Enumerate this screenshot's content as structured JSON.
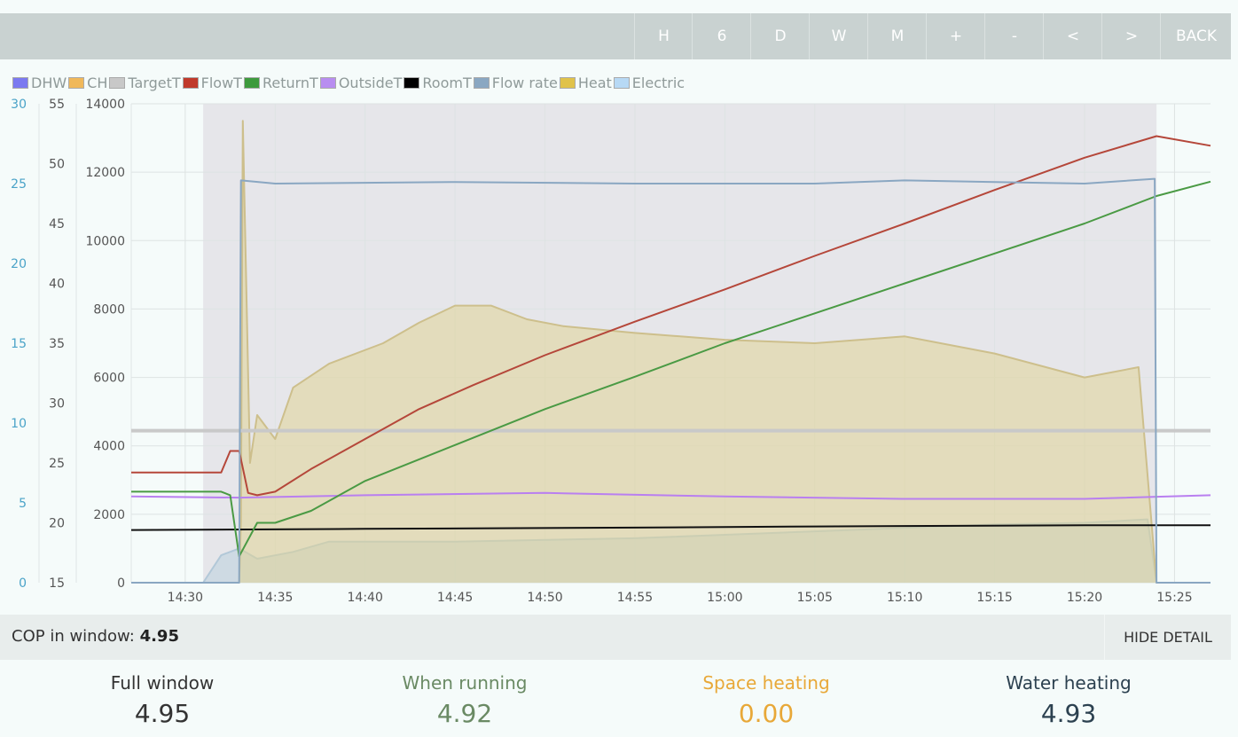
{
  "toolbar": {
    "buttons": [
      "H",
      "6",
      "D",
      "W",
      "M",
      "+",
      "-",
      "<",
      ">",
      "BACK"
    ]
  },
  "legend": [
    {
      "label": "DHW",
      "color": "#7b79f0"
    },
    {
      "label": "CH",
      "color": "#f0b85a"
    },
    {
      "label": "TargetT",
      "color": "#c8c8c8"
    },
    {
      "label": "FlowT",
      "color": "#c0392b"
    },
    {
      "label": "ReturnT",
      "color": "#3d9a3d"
    },
    {
      "label": "OutsideT",
      "color": "#b88df0"
    },
    {
      "label": "RoomT",
      "color": "#000000"
    },
    {
      "label": "Flow rate",
      "color": "#8aa7c2"
    },
    {
      "label": "Heat",
      "color": "#e0c24a"
    },
    {
      "label": "Electric",
      "color": "#b7d9f5"
    }
  ],
  "chart_data": {
    "type": "line",
    "x_ticks": [
      "14:30",
      "14:35",
      "14:40",
      "14:45",
      "14:50",
      "14:55",
      "15:00",
      "15:05",
      "15:10",
      "15:15",
      "15:20",
      "15:25"
    ],
    "x_range": [
      "14:27",
      "15:27"
    ],
    "y_axis_flow_rate": {
      "ticks": [
        0,
        5,
        10,
        15,
        20,
        25,
        30
      ],
      "range": [
        0,
        30
      ],
      "color": "#4aa3c8"
    },
    "y_axis_temperature": {
      "ticks": [
        15,
        20,
        25,
        30,
        35,
        40,
        45,
        50,
        55
      ],
      "range": [
        15,
        55
      ]
    },
    "y_axis_power": {
      "ticks": [
        0,
        2000,
        4000,
        6000,
        8000,
        10000,
        12000,
        14000
      ],
      "range": [
        0,
        14000
      ]
    },
    "running_band": [
      "14:31",
      "15:24"
    ],
    "series": [
      {
        "name": "FlowT",
        "axis": "temperature",
        "color": "#b5473a",
        "points": [
          [
            "14:27",
            24.2
          ],
          [
            "14:32",
            24.2
          ],
          [
            "14:32.5",
            26.0
          ],
          [
            "14:33",
            26.0
          ],
          [
            "14:33.5",
            22.5
          ],
          [
            "14:34",
            22.3
          ],
          [
            "14:35",
            22.6
          ],
          [
            "14:37",
            24.5
          ],
          [
            "14:40",
            27.0
          ],
          [
            "14:43",
            29.5
          ],
          [
            "14:46",
            31.5
          ],
          [
            "14:50",
            34.0
          ],
          [
            "14:55",
            36.8
          ],
          [
            "15:00",
            39.5
          ],
          [
            "15:05",
            42.3
          ],
          [
            "15:10",
            45.0
          ],
          [
            "15:15",
            47.8
          ],
          [
            "15:20",
            50.5
          ],
          [
            "15:24",
            52.3
          ],
          [
            "15:27",
            51.5
          ]
        ]
      },
      {
        "name": "ReturnT",
        "axis": "temperature",
        "color": "#4a9a44",
        "points": [
          [
            "14:27",
            22.6
          ],
          [
            "14:32",
            22.6
          ],
          [
            "14:32.5",
            22.3
          ],
          [
            "14:33",
            17.2
          ],
          [
            "14:34",
            20.0
          ],
          [
            "14:35",
            20.0
          ],
          [
            "14:37",
            21.0
          ],
          [
            "14:40",
            23.5
          ],
          [
            "14:45",
            26.5
          ],
          [
            "14:50",
            29.5
          ],
          [
            "14:55",
            32.2
          ],
          [
            "15:00",
            35.0
          ],
          [
            "15:05",
            37.5
          ],
          [
            "15:10",
            40.0
          ],
          [
            "15:15",
            42.5
          ],
          [
            "15:20",
            45.0
          ],
          [
            "15:24",
            47.3
          ],
          [
            "15:27",
            48.5
          ]
        ]
      },
      {
        "name": "TargetT",
        "axis": "temperature",
        "color": "#c9c9c9",
        "points": [
          [
            "14:27",
            27.7
          ],
          [
            "15:27",
            27.7
          ]
        ]
      },
      {
        "name": "OutsideT",
        "axis": "temperature",
        "color": "#b97ff0",
        "points": [
          [
            "14:27",
            22.2
          ],
          [
            "14:33",
            22.1
          ],
          [
            "14:40",
            22.3
          ],
          [
            "14:50",
            22.5
          ],
          [
            "15:00",
            22.2
          ],
          [
            "15:10",
            22.0
          ],
          [
            "15:20",
            22.0
          ],
          [
            "15:27",
            22.3
          ]
        ]
      },
      {
        "name": "RoomT",
        "axis": "temperature",
        "color": "#111111",
        "points": [
          [
            "14:27",
            19.4
          ],
          [
            "14:40",
            19.5
          ],
          [
            "14:55",
            19.6
          ],
          [
            "15:05",
            19.7
          ],
          [
            "15:20",
            19.8
          ],
          [
            "15:27",
            19.8
          ]
        ]
      },
      {
        "name": "Flow rate",
        "axis": "flow_rate",
        "color": "#8aa7c2",
        "points": [
          [
            "14:27",
            0
          ],
          [
            "14:33",
            0
          ],
          [
            "14:33.1",
            25.2
          ],
          [
            "14:35",
            25.0
          ],
          [
            "14:45",
            25.1
          ],
          [
            "14:55",
            25.0
          ],
          [
            "15:05",
            25.0
          ],
          [
            "15:10",
            25.2
          ],
          [
            "15:15",
            25.1
          ],
          [
            "15:20",
            25.0
          ],
          [
            "15:23.9",
            25.3
          ],
          [
            "15:24",
            0
          ],
          [
            "15:27",
            0
          ]
        ]
      },
      {
        "name": "Heat",
        "axis": "power",
        "color": "#cdbf8c",
        "fill": "rgba(224,212,150,0.55)",
        "points": [
          [
            "14:27",
            0
          ],
          [
            "14:33",
            0
          ],
          [
            "14:33.1",
            1800
          ],
          [
            "14:33.2",
            13500
          ],
          [
            "14:33.6",
            3500
          ],
          [
            "14:34",
            4900
          ],
          [
            "14:35",
            4200
          ],
          [
            "14:36",
            5700
          ],
          [
            "14:38",
            6400
          ],
          [
            "14:41",
            7000
          ],
          [
            "14:43",
            7600
          ],
          [
            "14:45",
            8100
          ],
          [
            "14:47",
            8100
          ],
          [
            "14:49",
            7700
          ],
          [
            "14:51",
            7500
          ],
          [
            "14:55",
            7300
          ],
          [
            "15:00",
            7100
          ],
          [
            "15:05",
            7000
          ],
          [
            "15:10",
            7200
          ],
          [
            "15:15",
            6700
          ],
          [
            "15:20",
            6000
          ],
          [
            "15:23",
            6300
          ],
          [
            "15:24",
            0
          ],
          [
            "15:27",
            0
          ]
        ]
      },
      {
        "name": "Electric",
        "axis": "power",
        "color": "#b2c8d8",
        "fill": "rgba(178,205,220,0.45)",
        "points": [
          [
            "14:27",
            0
          ],
          [
            "14:31",
            0
          ],
          [
            "14:32",
            800
          ],
          [
            "14:33",
            1000
          ],
          [
            "14:34",
            700
          ],
          [
            "14:36",
            900
          ],
          [
            "14:38",
            1200
          ],
          [
            "14:45",
            1200
          ],
          [
            "14:55",
            1300
          ],
          [
            "15:05",
            1500
          ],
          [
            "15:15",
            1700
          ],
          [
            "15:20",
            1750
          ],
          [
            "15:23.5",
            1850
          ],
          [
            "15:24",
            0
          ],
          [
            "15:27",
            0
          ]
        ]
      }
    ]
  },
  "cop_window": {
    "label": "COP in window:",
    "value": "4.95"
  },
  "hide_detail_label": "HIDE DETAIL",
  "stats": {
    "full_window": {
      "label": "Full window",
      "value": "4.95",
      "color": "#333333"
    },
    "when_running": {
      "label": "When running",
      "value": "4.92",
      "color": "#6a8a64"
    },
    "space_heating": {
      "label": "Space heating",
      "value": "0.00",
      "color": "#e8a838"
    },
    "water_heating": {
      "label": "Water heating",
      "value": "4.93",
      "color": "#2c4150"
    }
  }
}
